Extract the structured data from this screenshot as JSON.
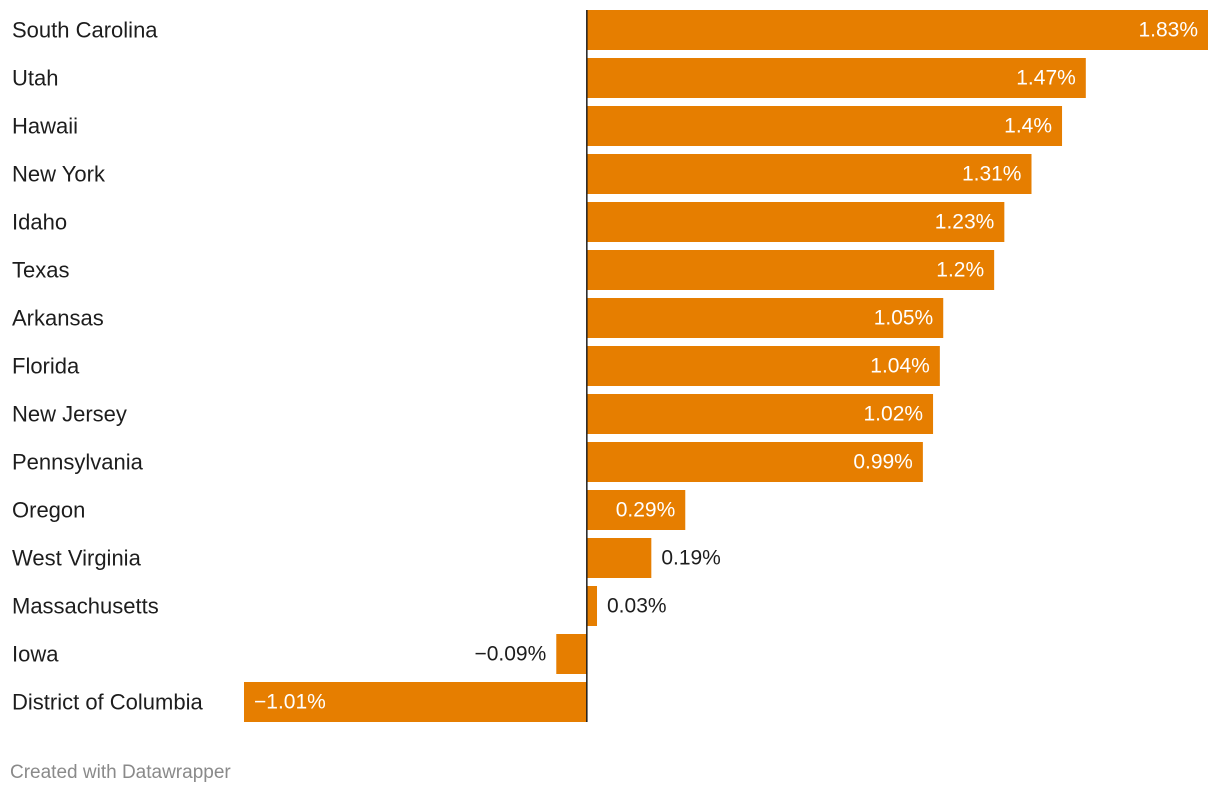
{
  "chart_data": {
    "type": "bar",
    "orientation": "horizontal",
    "title": "",
    "xlabel": "",
    "ylabel": "",
    "categories": [
      "South Carolina",
      "Utah",
      "Hawaii",
      "New York",
      "Idaho",
      "Texas",
      "Arkansas",
      "Florida",
      "New Jersey",
      "Pennsylvania",
      "Oregon",
      "West Virginia",
      "Massachusetts",
      "Iowa",
      "District of Columbia"
    ],
    "values": [
      1.83,
      1.47,
      1.4,
      1.31,
      1.23,
      1.2,
      1.05,
      1.04,
      1.02,
      0.99,
      0.29,
      0.19,
      0.03,
      -0.09,
      -1.01
    ],
    "value_labels": [
      "1.83%",
      "1.47%",
      "1.4%",
      "1.31%",
      "1.23%",
      "1.2%",
      "1.05%",
      "1.04%",
      "1.02%",
      "0.99%",
      "0.29%",
      "0.19%",
      "0.03%",
      "−0.09%",
      "−1.01%"
    ],
    "xlim": [
      -1.01,
      1.83
    ],
    "grid": false,
    "legend": "none",
    "bar_color": "#e67e00"
  },
  "footer": {
    "credit": "Created with Datawrapper"
  }
}
